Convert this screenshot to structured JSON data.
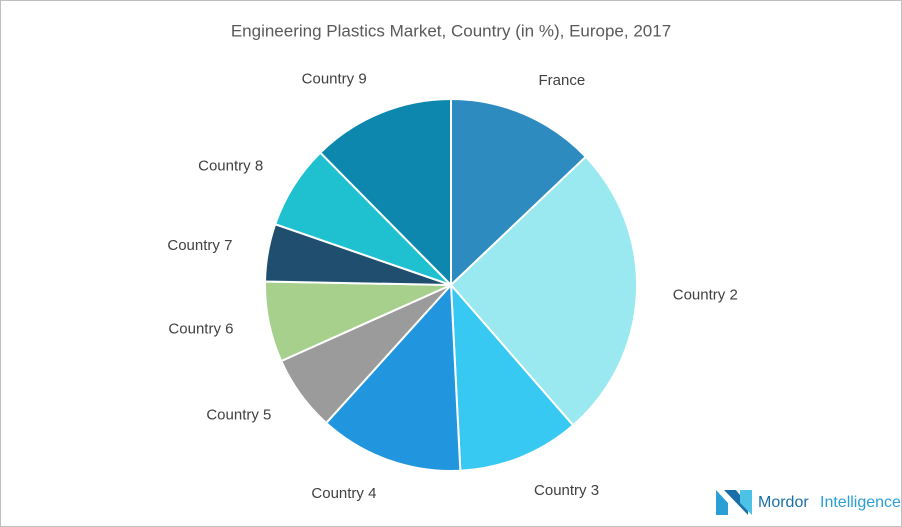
{
  "chart_data": {
    "type": "pie",
    "title": "Engineering Plastics Market, Country (in %), Europe, 2017",
    "categories": [
      "France",
      "Country 2",
      "Country 3",
      "Country 4",
      "Country 5",
      "Country 6",
      "Country 7",
      "Country 8",
      "Country 9"
    ],
    "values": [
      12.9,
      25.7,
      10.6,
      12.5,
      6.6,
      7.0,
      5.0,
      7.3,
      12.4
    ],
    "colors": [
      "#2e8bc0",
      "#9ae8f0",
      "#38c9f2",
      "#2196de",
      "#9b9b9b",
      "#a8d08d",
      "#1f4e6e",
      "#1fc1d0",
      "#0d87ad"
    ]
  },
  "watermark": {
    "brand": "Mordor",
    "brand2": "Intelligence"
  }
}
